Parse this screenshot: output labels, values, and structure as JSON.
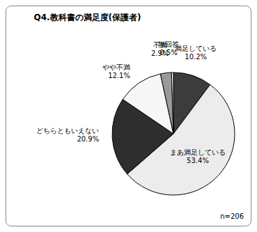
{
  "chart_data": {
    "type": "pie",
    "title": "Q4.教科書の満足度(保護者)",
    "annotation": "n=206",
    "categories": [
      "満足している",
      "まあ満足している",
      "どちらともいえない",
      "やや不満",
      "不満",
      "無回答"
    ],
    "values": [
      10.2,
      53.4,
      20.9,
      12.1,
      2.9,
      0.5
    ],
    "value_labels": [
      "10.2%",
      "53.4%",
      "20.9%",
      "12.1%",
      "2.9%",
      "0.5%"
    ],
    "colors": [
      "#3c3c3c",
      "#ececec",
      "#2e2e2e",
      "#f7f7f7",
      "#9a9a9a",
      "#ffffff"
    ],
    "data_labels": true
  }
}
